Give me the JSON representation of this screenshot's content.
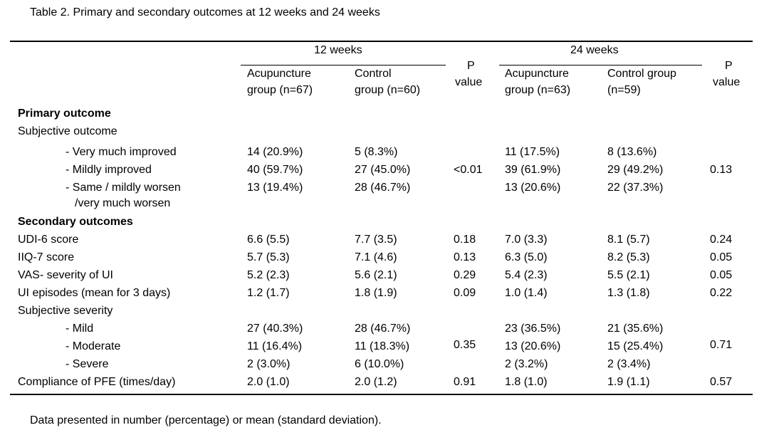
{
  "caption": "Table 2. Primary and secondary outcomes at 12 weeks and 24 weeks",
  "header": {
    "group_12": "12 weeks",
    "group_24": "24 weeks",
    "acu_12": [
      "Acupuncture",
      "group (n=67)"
    ],
    "ctl_12": [
      "Control",
      "group (n=60)"
    ],
    "p_12": [
      "P",
      "value"
    ],
    "acu_24": [
      "Acupuncture",
      "group (n=63)"
    ],
    "ctl_24": [
      "Control group",
      "(n=59)"
    ],
    "p_24": [
      "P",
      "value"
    ]
  },
  "sections": {
    "primary": "Primary outcome",
    "secondary": "Secondary outcomes"
  },
  "primary": {
    "label": "Subjective outcome",
    "p_12": "<0.01",
    "p_24": "0.13",
    "rows": [
      {
        "label": "- Very much improved",
        "acu_12": "14 (20.9%)",
        "ctl_12": "5 (8.3%)",
        "acu_24": "11 (17.5%)",
        "ctl_24": "8 (13.6%)"
      },
      {
        "label": "- Mildly improved",
        "acu_12": "40 (59.7%)",
        "ctl_12": "27 (45.0%)",
        "acu_24": "39 (61.9%)",
        "ctl_24": "29 (49.2%)"
      },
      {
        "label": "- Same / mildly worsen",
        "label2": "/very much worsen",
        "acu_12": "13 (19.4%)",
        "ctl_12": "28 (46.7%)",
        "acu_24": "13 (20.6%)",
        "ctl_24": "22 (37.3%)"
      }
    ]
  },
  "secondary": {
    "rows": [
      {
        "label": "UDI-6 score",
        "acu_12": "6.6 (5.5)",
        "ctl_12": "7.7 (3.5)",
        "p_12": "0.18",
        "acu_24": "7.0 (3.3)",
        "ctl_24": "8.1 (5.7)",
        "p_24": "0.24"
      },
      {
        "label": "IIQ-7 score",
        "acu_12": "5.7 (5.3)",
        "ctl_12": "7.1 (4.6)",
        "p_12": "0.13",
        "acu_24": "6.3 (5.0)",
        "ctl_24": "8.2 (5.3)",
        "p_24": "0.05"
      },
      {
        "label": "VAS- severity of UI",
        "acu_12": "5.2 (2.3)",
        "ctl_12": "5.6 (2.1)",
        "p_12": "0.29",
        "acu_24": "5.4 (2.3)",
        "ctl_24": "5.5 (2.1)",
        "p_24": "0.05"
      },
      {
        "label": "UI episodes (mean for 3 days)",
        "acu_12": "1.2 (1.7)",
        "ctl_12": "1.8 (1.9)",
        "p_12": "0.09",
        "acu_24": "1.0 (1.4)",
        "ctl_24": "1.3 (1.8)",
        "p_24": "0.22"
      }
    ],
    "severity": {
      "label": "Subjective severity",
      "p_12": "0.35",
      "p_24": "0.71",
      "rows": [
        {
          "label": "- Mild",
          "acu_12": "27 (40.3%)",
          "ctl_12": "28 (46.7%)",
          "acu_24": "23 (36.5%)",
          "ctl_24": "21 (35.6%)"
        },
        {
          "label": "- Moderate",
          "acu_12": "11 (16.4%)",
          "ctl_12": "11 (18.3%)",
          "acu_24": "13 (20.6%)",
          "ctl_24": "15 (25.4%)"
        },
        {
          "label": "- Severe",
          "acu_12": "2 (3.0%)",
          "ctl_12": "6 (10.0%)",
          "acu_24": "2 (3.2%)",
          "ctl_24": "2 (3.4%)"
        }
      ]
    },
    "compliance": {
      "label": "Compliance of PFE (times/day)",
      "acu_12": "2.0 (1.0)",
      "ctl_12": "2.0 (1.2)",
      "p_12": "0.91",
      "acu_24": "1.8 (1.0)",
      "ctl_24": "1.9 (1.1)",
      "p_24": "0.57"
    }
  },
  "footnote": "Data presented in number (percentage) or mean (standard deviation)."
}
